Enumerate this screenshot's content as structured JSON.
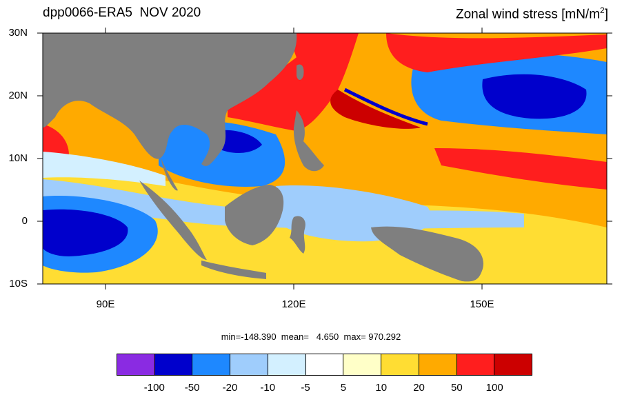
{
  "figure": {
    "title_left": "dpp0066-ERA5  NOV 2020",
    "title_right_main": "Zonal wind stress [mN/m",
    "title_right_sup": "2",
    "title_right_end": "]"
  },
  "axes": {
    "lat_labels": [
      "30N",
      "20N",
      "10N",
      "0",
      "10S"
    ],
    "lon_labels": [
      "90E",
      "120E",
      "150E"
    ],
    "lat_range": [
      -10,
      30
    ],
    "lon_range": [
      80,
      170
    ]
  },
  "stats": {
    "text": "min=-148.390  mean=   4.650  max= 970.292"
  },
  "colorbar": {
    "colors": [
      "#8a2be2",
      "#0000cc",
      "#1e88ff",
      "#9fcdfc",
      "#d3f0ff",
      "#ffffff",
      "#ffffc8",
      "#ffdd33",
      "#ffaa00",
      "#ff1e1e",
      "#cc0000"
    ],
    "labels": [
      "-100",
      "-50",
      "-20",
      "-10",
      "-5",
      "5",
      "10",
      "20",
      "50",
      "100"
    ]
  },
  "legend_colors": {
    "land": "#7f7f7f",
    "ocean_base": "#ffaa00"
  }
}
